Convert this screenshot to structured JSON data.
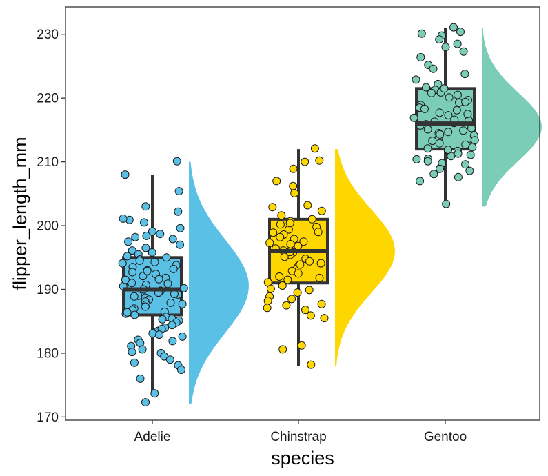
{
  "chart_data": {
    "type": "raincloud",
    "title": "",
    "xlabel": "species",
    "ylabel": "flipper_length_mm",
    "ylim": [
      169.5,
      234.3
    ],
    "yticks": [
      170,
      180,
      190,
      200,
      210,
      220,
      230
    ],
    "ytick_labels": [
      "170",
      "180",
      "190",
      "200",
      "210",
      "220",
      "230"
    ],
    "grid": false,
    "legend": "none",
    "categories": [
      "Adelie",
      "Chinstrap",
      "Gentoo"
    ],
    "series": [
      {
        "name": "Adelie",
        "color": "#5BC0E6",
        "boxplot": {
          "whisker_low": 174,
          "q1": 186,
          "median": 190,
          "q3": 195,
          "whisker_high": 208
        },
        "density_range": [
          172,
          210
        ],
        "density_mode": 190.5,
        "points": [
          210.1,
          205.4,
          208.0,
          203.0,
          202.2,
          200.9,
          200.5,
          199.1,
          198.7,
          198.2,
          197.5,
          197.0,
          196.5,
          196.1,
          195.8,
          195.5,
          195.2,
          195.0,
          194.7,
          194.5,
          194.1,
          193.8,
          193.5,
          193.2,
          193.0,
          192.7,
          192.4,
          192.1,
          191.8,
          191.6,
          191.3,
          191.0,
          190.7,
          190.5,
          190.2,
          190.0,
          189.8,
          189.5,
          189.2,
          189.0,
          188.7,
          188.4,
          188.1,
          187.9,
          187.6,
          187.3,
          187.0,
          186.8,
          186.5,
          186.2,
          186.0,
          185.7,
          185.4,
          185.1,
          184.8,
          184.4,
          184.0,
          183.5,
          183.1,
          182.6,
          182.1,
          181.6,
          181.1,
          180.6,
          180.0,
          179.5,
          178.5,
          178.1,
          177.4,
          176.0,
          173.7,
          172.3,
          201.1,
          199.6,
          198.4,
          197.9,
          194.3,
          192.9,
          191.5,
          190.9,
          189.3,
          188.9,
          187.7,
          186.4,
          185.3,
          183.8,
          182.9,
          181.9,
          180.2,
          179.0
        ]
      },
      {
        "name": "Chinstrap",
        "color": "#FFD700",
        "boxplot": {
          "whisker_low": 178,
          "q1": 191,
          "median": 196,
          "q3": 201,
          "whisker_high": 212
        },
        "density_range": [
          178,
          212
        ],
        "density_mode": 196,
        "points": [
          212.1,
          210.2,
          210.0,
          208.9,
          207.0,
          206.2,
          205.1,
          203.2,
          202.3,
          201.6,
          201.0,
          200.7,
          200.2,
          199.8,
          199.4,
          199.0,
          198.6,
          198.2,
          197.9,
          197.5,
          197.1,
          196.8,
          196.4,
          196.1,
          195.8,
          195.4,
          195.1,
          194.8,
          194.4,
          194.1,
          193.7,
          193.3,
          192.9,
          192.5,
          192.0,
          191.5,
          191.1,
          190.6,
          190.1,
          189.5,
          188.9,
          188.2,
          187.5,
          187.1,
          186.8,
          185.5,
          181.2,
          180.6,
          178.2,
          202.9,
          200.4,
          198.9,
          197.3,
          195.9,
          193.9,
          191.8,
          189.9,
          188.5,
          187.7,
          185.9
        ]
      },
      {
        "name": "Gentoo",
        "color": "#7BCDB7",
        "boxplot": {
          "whisker_low": 203,
          "q1": 212,
          "median": 216,
          "q3": 221.5,
          "whisker_high": 231
        },
        "density_range": [
          203,
          231
        ],
        "density_mode": 215.5,
        "points": [
          231.1,
          230.4,
          230.1,
          229.8,
          229.2,
          228.5,
          228.0,
          227.3,
          226.4,
          225.2,
          224.6,
          223.8,
          222.9,
          222.2,
          221.7,
          221.3,
          220.9,
          220.5,
          220.1,
          219.7,
          219.3,
          218.9,
          218.5,
          218.1,
          217.7,
          217.3,
          216.9,
          216.5,
          216.1,
          215.7,
          215.3,
          214.9,
          214.5,
          214.1,
          213.7,
          213.3,
          212.9,
          212.5,
          212.1,
          211.7,
          211.3,
          210.9,
          210.5,
          210.1,
          209.6,
          209.1,
          208.6,
          208.1,
          207.6,
          207.0,
          203.4,
          221.5,
          220.8,
          219.4,
          218.3,
          217.5,
          216.6,
          215.9,
          215.1,
          214.3,
          213.4,
          212.7,
          211.9,
          211.1,
          210.4,
          209.8,
          208.9,
          216.3,
          214.7,
          212.3
        ]
      }
    ]
  }
}
